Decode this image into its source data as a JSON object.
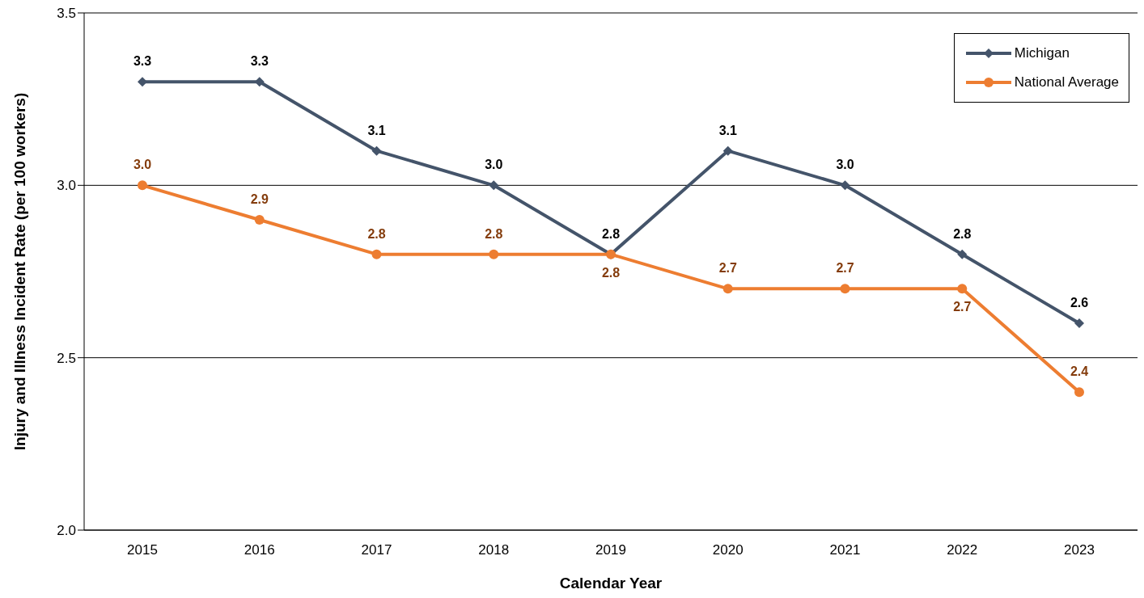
{
  "chart_data": {
    "type": "line",
    "xlabel": "Calendar Year",
    "ylabel": "Injury and Illness Incident Rate (per 100 workers)",
    "categories": [
      "2015",
      "2016",
      "2017",
      "2018",
      "2019",
      "2020",
      "2021",
      "2022",
      "2023"
    ],
    "series": [
      {
        "name": "Michigan",
        "color": "#44546a",
        "marker": "diamond",
        "values": [
          3.3,
          3.3,
          3.1,
          3.0,
          2.8,
          3.1,
          3.0,
          2.8,
          2.6
        ],
        "value_labels": [
          "3.3",
          "3.3",
          "3.1",
          "3.0",
          "2.8",
          "3.1",
          "3.0",
          "2.8",
          "2.6"
        ]
      },
      {
        "name": "National Average",
        "color": "#ed7d31",
        "marker": "circle",
        "values": [
          3.0,
          2.9,
          2.8,
          2.8,
          2.8,
          2.7,
          2.7,
          2.7,
          2.4
        ],
        "value_labels": [
          "3.0",
          "2.9",
          "2.8",
          "2.8",
          "2.8",
          "2.7",
          "2.7",
          "2.7",
          "2.4"
        ]
      }
    ],
    "ylim": [
      2.0,
      3.5
    ],
    "yticks": [
      {
        "value": 2.0,
        "label": "2.0"
      },
      {
        "value": 2.5,
        "label": "2.5"
      },
      {
        "value": 3.0,
        "label": "3.0"
      },
      {
        "value": 3.5,
        "label": "3.5"
      }
    ],
    "grid": "y",
    "legend": "top right",
    "line_style": "solid"
  }
}
